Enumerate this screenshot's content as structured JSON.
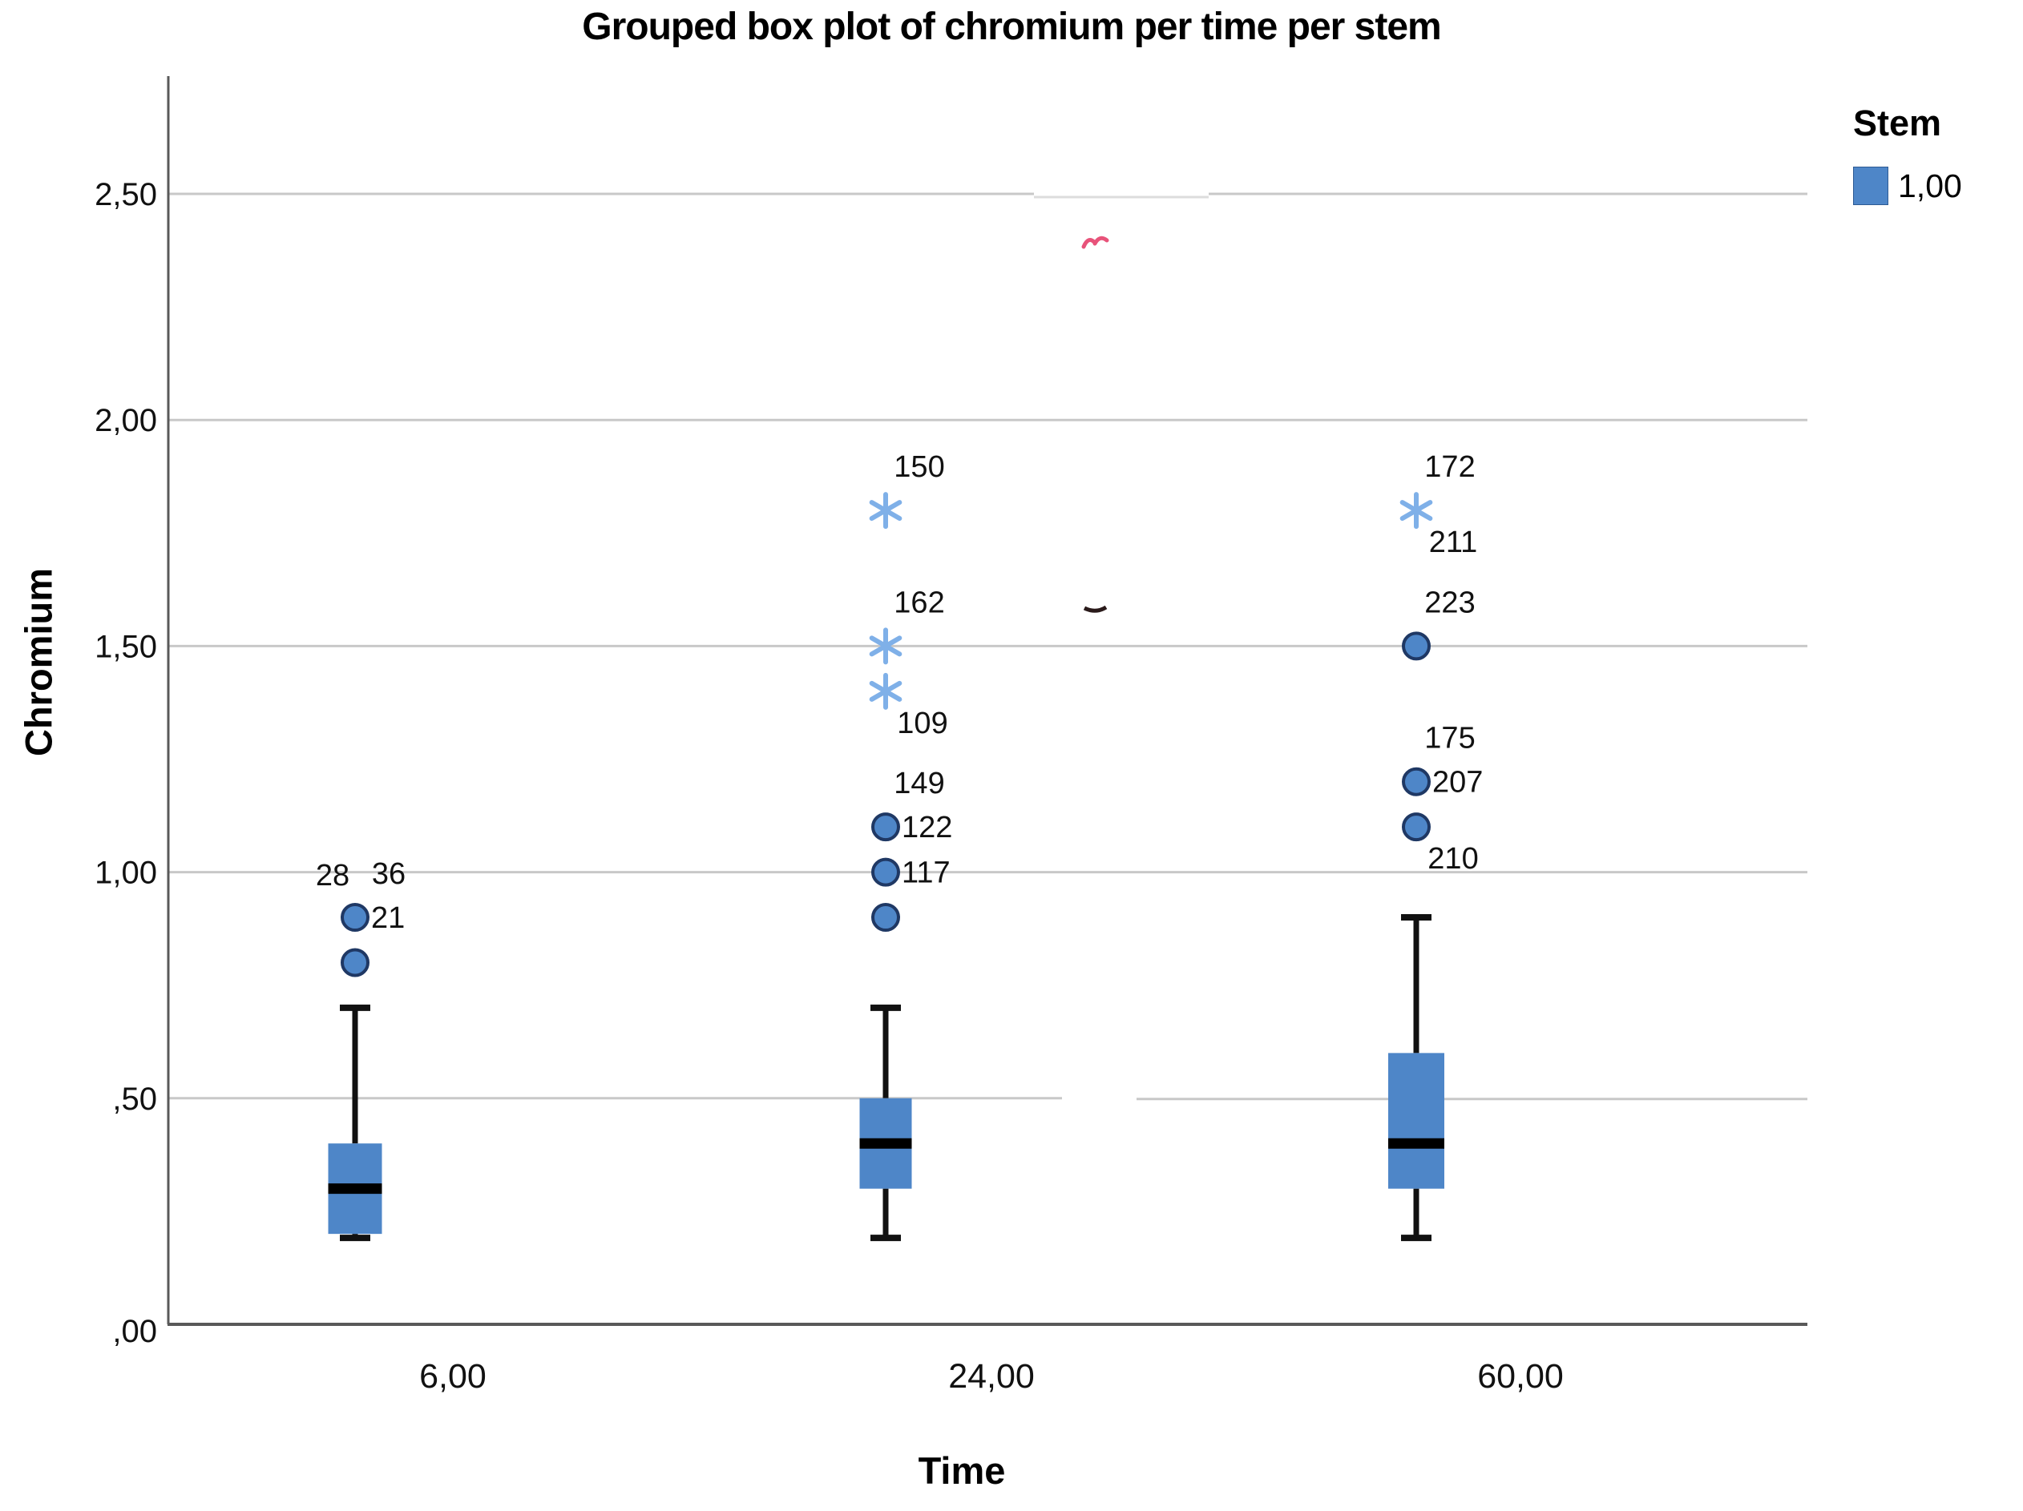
{
  "title": "Grouped box plot of chromium per time per stem",
  "y_axis": {
    "title": "Chromium",
    "tick_labels": [
      "2,50",
      "2,00",
      "1,50",
      "1,00",
      ",50",
      ",00"
    ],
    "tick_values": [
      2.5,
      2.0,
      1.5,
      1.0,
      0.5,
      0.0
    ]
  },
  "x_axis": {
    "title": "Time",
    "tick_labels": [
      "6,00",
      "24,00",
      "60,00"
    ]
  },
  "legend": {
    "title": "Stem",
    "items": [
      {
        "label": "1,00",
        "color": "#4e86c8"
      }
    ]
  },
  "colors": {
    "box_fill": "#4e86c8",
    "median": "#000000",
    "whisker": "#111111",
    "outlier_fill": "#4e86c8",
    "outlier_stroke": "#1f3864",
    "extreme_asterisk": "#7fb0e8",
    "gridline": "#c8c8c8",
    "gridline_faint": "#dcdcdc",
    "axis_line": "#595959",
    "label_text": "#111111",
    "artifact_pink": "#e8537a",
    "artifact_dark": "#2a1a1a"
  },
  "chart_data": {
    "type": "boxplot",
    "title": "Grouped box plot of chromium per time per stem",
    "xlabel": "Time",
    "ylabel": "Chromium",
    "ylim": [
      0,
      2.76
    ],
    "grid": "horizontal",
    "legend_position": "top-right",
    "categories": [
      "6,00",
      "24,00",
      "60,00"
    ],
    "groups": [
      {
        "category": "6,00",
        "stem": "1,00",
        "whisker_low": 0.2,
        "q1": 0.2,
        "median": 0.3,
        "q3": 0.4,
        "whisker_high": 0.7,
        "outliers": [
          {
            "value": 0.9,
            "mark": "circle",
            "labels": [
              {
                "text": "28",
                "pos": "above-left"
              },
              {
                "text": "36",
                "pos": "above-right"
              },
              {
                "text": "21",
                "pos": "right"
              }
            ]
          },
          {
            "value": 0.8,
            "mark": "circle",
            "labels": []
          }
        ]
      },
      {
        "category": "24,00",
        "stem": "1,00",
        "whisker_low": 0.2,
        "q1": 0.3,
        "median": 0.4,
        "q3": 0.5,
        "whisker_high": 0.7,
        "outliers": [
          {
            "value": 1.8,
            "mark": "asterisk",
            "labels": [
              {
                "text": "150",
                "pos": "above-right"
              }
            ]
          },
          {
            "value": 1.5,
            "mark": "asterisk",
            "labels": [
              {
                "text": "162",
                "pos": "above-right"
              }
            ]
          },
          {
            "value": 1.4,
            "mark": "asterisk",
            "labels": [
              {
                "text": "109",
                "pos": "below-right"
              }
            ]
          },
          {
            "value": 1.1,
            "mark": "circle",
            "labels": [
              {
                "text": "149",
                "pos": "above-right"
              },
              {
                "text": "122",
                "pos": "right"
              }
            ]
          },
          {
            "value": 1.0,
            "mark": "circle",
            "labels": [
              {
                "text": "117",
                "pos": "right"
              }
            ]
          },
          {
            "value": 0.9,
            "mark": "circle",
            "labels": []
          }
        ]
      },
      {
        "category": "60,00",
        "stem": "1,00",
        "whisker_low": 0.2,
        "q1": 0.3,
        "median": 0.4,
        "q3": 0.6,
        "whisker_high": 0.9,
        "outliers": [
          {
            "value": 1.8,
            "mark": "asterisk",
            "labels": [
              {
                "text": "172",
                "pos": "above-right"
              },
              {
                "text": "211",
                "pos": "below-right"
              }
            ]
          },
          {
            "value": 1.5,
            "mark": "circle",
            "labels": [
              {
                "text": "223",
                "pos": "above-right"
              }
            ]
          },
          {
            "value": 1.2,
            "mark": "circle",
            "labels": [
              {
                "text": "175",
                "pos": "above-right"
              },
              {
                "text": "207",
                "pos": "right"
              }
            ]
          },
          {
            "value": 1.1,
            "mark": "circle",
            "labels": [
              {
                "text": "210",
                "pos": "below-right"
              }
            ]
          }
        ]
      }
    ]
  }
}
